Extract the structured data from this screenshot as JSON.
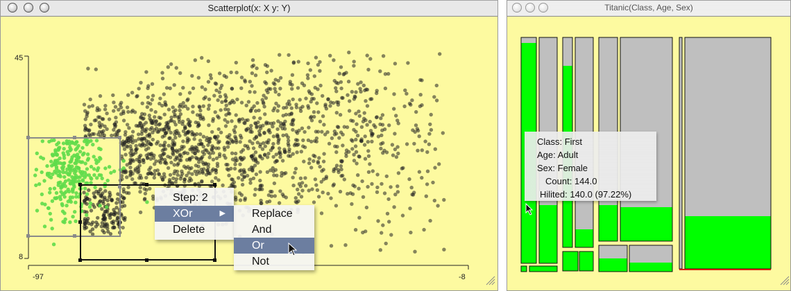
{
  "scatter_window": {
    "title": "Scatterplot(x: X y: Y)",
    "y_axis": {
      "top": "45",
      "bottom": "8"
    },
    "x_axis": {
      "left": "-97",
      "right": "-8"
    }
  },
  "context_menu": {
    "items": [
      {
        "label": "Step: 2"
      },
      {
        "label": "XOr",
        "submenu": true
      },
      {
        "label": "Delete"
      }
    ]
  },
  "submenu": {
    "items": [
      {
        "label": "Replace"
      },
      {
        "label": "And"
      },
      {
        "label": "Or",
        "selected": true
      },
      {
        "label": "Not"
      }
    ]
  },
  "mosaic_window": {
    "title": "Titanic(Class, Age, Sex)",
    "tooltip": {
      "class": "Class: First",
      "age": "Age: Adult",
      "sex": "Sex: Female",
      "count": "Count: 144.0",
      "hilited": "Hilited: 140.0 (97.22%)"
    }
  },
  "colors": {
    "background": "#fdfaa0",
    "highlight": "#00ff00",
    "cell": "#bfbfbf",
    "selected_point": "#5fdc4a",
    "point": "#222222"
  },
  "chart_data": {
    "type": "scatter",
    "xlim": [
      -97,
      -8
    ],
    "ylim": [
      8,
      45
    ],
    "x_tick_labels": [
      "-97",
      "-8"
    ],
    "y_tick_labels": [
      "45",
      "8"
    ],
    "selected_fraction_note_free": true
  }
}
